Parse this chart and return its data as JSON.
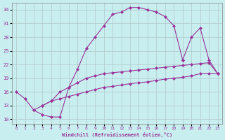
{
  "bg_color": "#c8eef0",
  "grid_color": "#b0c8c8",
  "line_color": "#993399",
  "xlabel": "Windchill (Refroidissement éolien,°C)",
  "xlim_min": -0.5,
  "xlim_max": 23.5,
  "ylim_min": 9,
  "ylim_max": 35.5,
  "xticks": [
    0,
    1,
    2,
    3,
    4,
    5,
    6,
    7,
    8,
    9,
    10,
    11,
    12,
    13,
    14,
    15,
    16,
    17,
    18,
    19,
    20,
    21,
    22,
    23
  ],
  "yticks": [
    10,
    13,
    16,
    19,
    22,
    25,
    28,
    31,
    34
  ],
  "curve1_x": [
    0,
    1,
    2,
    3,
    4,
    5,
    6,
    7,
    8,
    9,
    10,
    11,
    12,
    13,
    14,
    15,
    16,
    17,
    18,
    19
  ],
  "curve1_y": [
    16,
    14.5,
    12,
    11,
    10.5,
    10.5,
    17,
    21,
    25.5,
    28,
    30.5,
    33,
    33.5,
    34.5,
    34.5,
    34.0,
    33.5,
    32.5,
    30.5,
    23
  ],
  "curve2_x": [
    3,
    4,
    5,
    6,
    7,
    8,
    9,
    10,
    11,
    12,
    13,
    14,
    15,
    16,
    17,
    18,
    19,
    20,
    21,
    22,
    23
  ],
  "curve2_y": [
    13,
    14,
    16,
    17,
    18,
    19,
    19.5,
    20,
    20.2,
    20.4,
    20.6,
    20.8,
    21,
    21.2,
    21.4,
    21.6,
    21.8,
    22,
    22.2,
    22.4,
    20
  ],
  "curve3_x": [
    2,
    3,
    4,
    5,
    6,
    7,
    8,
    9,
    10,
    11,
    12,
    13,
    14,
    15,
    16,
    17,
    18,
    19,
    20,
    21,
    22,
    23
  ],
  "curve3_y": [
    12,
    13,
    14,
    14.5,
    15,
    15.5,
    16,
    16.5,
    17,
    17.2,
    17.5,
    17.8,
    18,
    18.2,
    18.5,
    18.8,
    19,
    19.2,
    19.5,
    20,
    20,
    20
  ],
  "curve4_x": [
    19,
    20,
    21,
    22,
    23
  ],
  "curve4_y": [
    23,
    28,
    30,
    23,
    20
  ]
}
